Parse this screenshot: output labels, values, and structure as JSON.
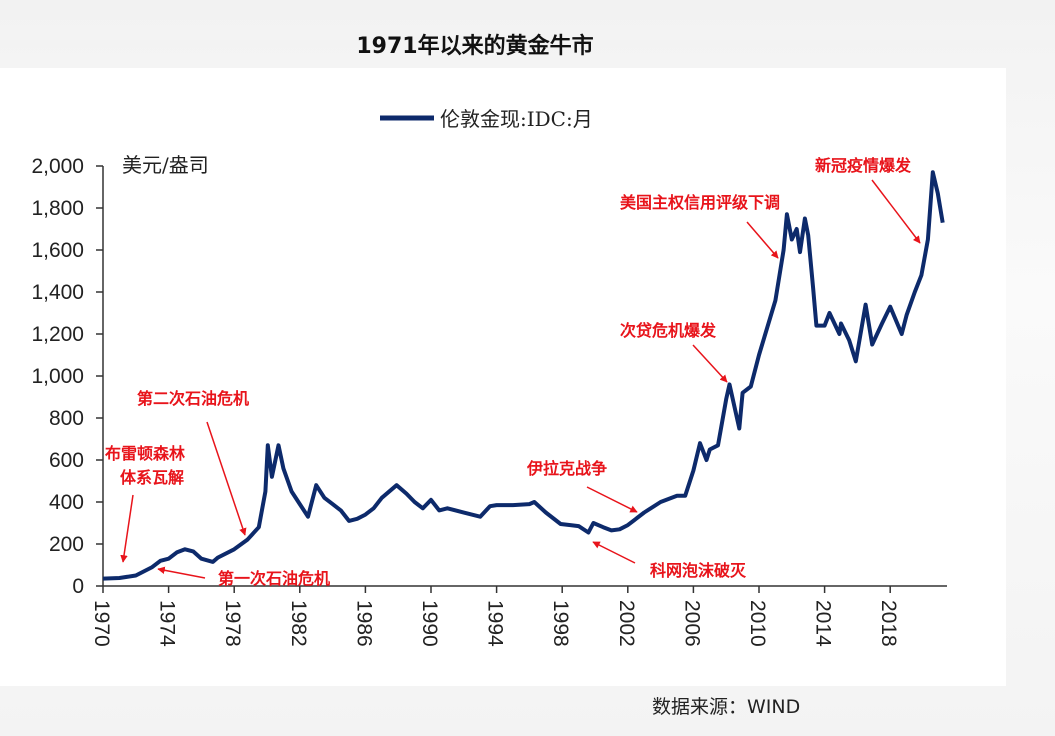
{
  "title": "1971年以来的黄金牛市",
  "source": "数据来源：WIND",
  "chart_data": {
    "type": "line",
    "title": "1971年以来的黄金牛市",
    "legend": {
      "position": "top-center",
      "entries": [
        "伦敦金现:IDC:月"
      ]
    },
    "ylabel": "美元/盎司",
    "xlabel": "",
    "ylim": [
      0,
      2000
    ],
    "xlim": [
      1970,
      2021.5
    ],
    "grid": false,
    "yticks": [
      "0",
      "200",
      "400",
      "600",
      "800",
      "1,000",
      "1,200",
      "1,400",
      "1,600",
      "1,800",
      "2,000"
    ],
    "xticks": [
      "1970",
      "1974",
      "1978",
      "1982",
      "1986",
      "1990",
      "1994",
      "1998",
      "2002",
      "2006",
      "2010",
      "2014",
      "2018"
    ],
    "colors": {
      "series": "#0d2a6b",
      "annotation": "#e8141b"
    },
    "series": [
      {
        "name": "伦敦金现:IDC:月",
        "x": [
          1970,
          1971,
          1972,
          1973,
          1973.5,
          1974,
          1974.5,
          1975,
          1975.5,
          1976,
          1976.7,
          1977,
          1978,
          1978.8,
          1979.5,
          1979.9,
          1980.05,
          1980.3,
          1980.7,
          1981,
          1981.5,
          1982,
          1982.5,
          1983,
          1983.5,
          1984,
          1984.5,
          1985,
          1985.5,
          1986,
          1986.5,
          1987,
          1987.9,
          1988.5,
          1989,
          1989.5,
          1990,
          1990.5,
          1991,
          1992,
          1993,
          1993.6,
          1994,
          1995,
          1996,
          1996.3,
          1997,
          1997.9,
          1998.5,
          1999,
          1999.6,
          1999.9,
          2000.5,
          2001,
          2001.5,
          2002,
          2002.5,
          2003,
          2004,
          2005,
          2005.5,
          2006,
          2006.4,
          2006.8,
          2007,
          2007.5,
          2008,
          2008.2,
          2008.8,
          2009,
          2009.5,
          2010,
          2010.5,
          2011,
          2011.5,
          2011.7,
          2012,
          2012.3,
          2012.5,
          2012.8,
          2013,
          2013.3,
          2013.5,
          2014,
          2014.3,
          2014.9,
          2015,
          2015.5,
          2015.9,
          2016.5,
          2016.9,
          2017.5,
          2018,
          2018.7,
          2019,
          2019.5,
          2019.9,
          2020.3,
          2020.6,
          2020.9,
          2021.2
        ],
        "values": [
          35,
          38,
          50,
          90,
          120,
          130,
          160,
          175,
          165,
          130,
          115,
          135,
          175,
          220,
          280,
          450,
          670,
          520,
          670,
          560,
          450,
          390,
          330,
          480,
          420,
          390,
          360,
          310,
          320,
          340,
          370,
          420,
          480,
          440,
          400,
          370,
          410,
          360,
          370,
          350,
          330,
          380,
          385,
          385,
          390,
          400,
          350,
          295,
          290,
          285,
          255,
          300,
          280,
          265,
          270,
          290,
          320,
          350,
          400,
          430,
          430,
          550,
          680,
          600,
          650,
          670,
          890,
          960,
          750,
          920,
          950,
          1100,
          1230,
          1360,
          1600,
          1770,
          1650,
          1700,
          1590,
          1750,
          1670,
          1420,
          1240,
          1240,
          1300,
          1200,
          1250,
          1170,
          1070,
          1340,
          1150,
          1250,
          1330,
          1200,
          1290,
          1400,
          1480,
          1650,
          1970,
          1870,
          1730
        ]
      }
    ],
    "annotations": [
      {
        "lines": [
          "布雷顿森林",
          "体系瓦解"
        ]
      },
      {
        "lines": [
          "第二次石油危机"
        ]
      },
      {
        "lines": [
          "第一次石油危机"
        ]
      },
      {
        "lines": [
          "伊拉克战争"
        ]
      },
      {
        "lines": [
          "科网泡沫破灭"
        ]
      },
      {
        "lines": [
          "次贷危机爆发"
        ]
      },
      {
        "lines": [
          "美国主权信用评级下调"
        ]
      },
      {
        "lines": [
          "新冠疫情爆发"
        ]
      }
    ]
  }
}
